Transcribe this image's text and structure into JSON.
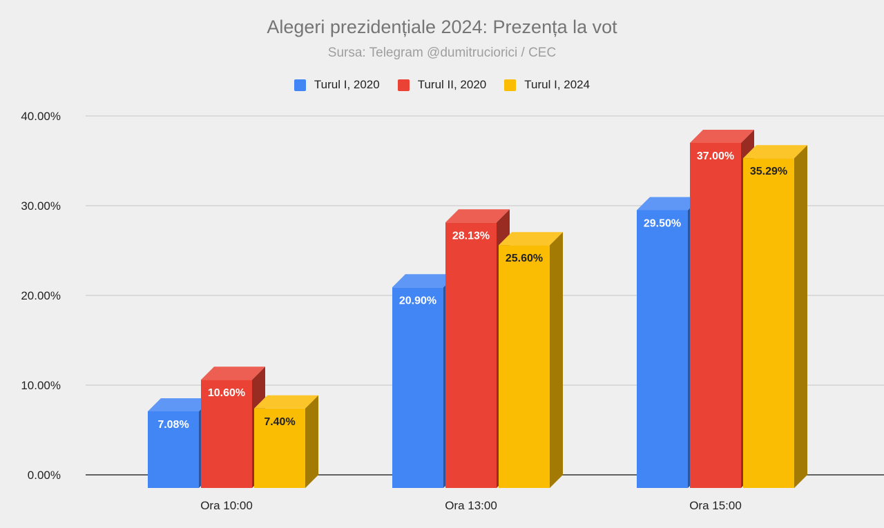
{
  "chart_data": {
    "type": "bar",
    "title": "Alegeri prezidențiale 2024: Prezența la vot",
    "subtitle": "Sursa: Telegram @dumitruciorici / CEC",
    "categories": [
      "Ora 10:00",
      "Ora 13:00",
      "Ora 15:00"
    ],
    "series": [
      {
        "name": "Turul I, 2020",
        "values": [
          7.08,
          20.9,
          29.5
        ],
        "labels": [
          "7.08%",
          "20.90%",
          "29.50%"
        ],
        "color": "#4285f4",
        "label_color": "#ffffff"
      },
      {
        "name": "Turul II, 2020",
        "values": [
          10.6,
          28.13,
          37.0
        ],
        "labels": [
          "10.60%",
          "28.13%",
          "37.00%"
        ],
        "color": "#ea4335",
        "label_color": "#ffffff"
      },
      {
        "name": "Turul I, 2024",
        "values": [
          7.4,
          25.6,
          35.29
        ],
        "labels": [
          "7.40%",
          "25.60%",
          "35.29%"
        ],
        "color": "#fbbc04",
        "label_color": "#222222"
      }
    ],
    "y_ticks": [
      "0.00%",
      "10.00%",
      "20.00%",
      "30.00%",
      "40.00%"
    ],
    "ylim": [
      0,
      40
    ],
    "grid": true,
    "legend_position": "top-center",
    "style": "3d-bar"
  }
}
